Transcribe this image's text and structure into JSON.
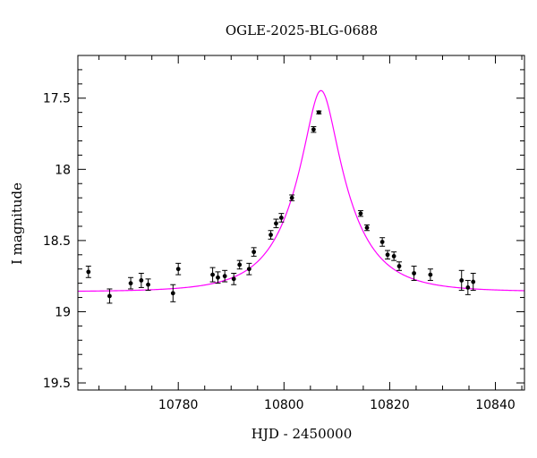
{
  "chart_data": {
    "type": "scatter",
    "title": "OGLE-2025-BLG-0688",
    "xlabel": "HJD - 2450000",
    "ylabel": "I magnitude",
    "xlim": [
      10761,
      10845.5
    ],
    "ylim": [
      19.55,
      17.2
    ],
    "y_inverted": true,
    "xticks": [
      10780,
      10800,
      10820,
      10840
    ],
    "yticks": [
      17.5,
      18,
      18.5,
      19,
      19.5
    ],
    "xtick_labels": [
      "10780",
      "10800",
      "10820",
      "10840"
    ],
    "ytick_labels": [
      "17.5",
      "18",
      "18.5",
      "19",
      "19.5"
    ],
    "model_color": "#ff00ff",
    "marker_color": "#000000",
    "model": {
      "t0": 10807.0,
      "u0": 0.28,
      "tE": 10.0,
      "baseline": 18.86
    },
    "points": [
      {
        "x": 10763.0,
        "y": 18.72,
        "err": 0.04
      },
      {
        "x": 10767.0,
        "y": 18.89,
        "err": 0.05
      },
      {
        "x": 10771.0,
        "y": 18.8,
        "err": 0.04
      },
      {
        "x": 10773.0,
        "y": 18.78,
        "err": 0.05
      },
      {
        "x": 10774.3,
        "y": 18.81,
        "err": 0.04
      },
      {
        "x": 10779.0,
        "y": 18.87,
        "err": 0.06
      },
      {
        "x": 10780.0,
        "y": 18.7,
        "err": 0.04
      },
      {
        "x": 10786.5,
        "y": 18.74,
        "err": 0.05
      },
      {
        "x": 10787.5,
        "y": 18.76,
        "err": 0.04
      },
      {
        "x": 10788.8,
        "y": 18.75,
        "err": 0.04
      },
      {
        "x": 10790.5,
        "y": 18.77,
        "err": 0.04
      },
      {
        "x": 10791.6,
        "y": 18.67,
        "err": 0.03
      },
      {
        "x": 10793.4,
        "y": 18.7,
        "err": 0.04
      },
      {
        "x": 10794.3,
        "y": 18.58,
        "err": 0.03
      },
      {
        "x": 10797.5,
        "y": 18.46,
        "err": 0.03
      },
      {
        "x": 10798.5,
        "y": 18.38,
        "err": 0.03
      },
      {
        "x": 10799.5,
        "y": 18.34,
        "err": 0.03
      },
      {
        "x": 10801.5,
        "y": 18.2,
        "err": 0.02
      },
      {
        "x": 10805.6,
        "y": 17.72,
        "err": 0.02
      },
      {
        "x": 10806.6,
        "y": 17.6,
        "err": 0.01
      },
      {
        "x": 10814.5,
        "y": 18.31,
        "err": 0.02
      },
      {
        "x": 10815.7,
        "y": 18.41,
        "err": 0.02
      },
      {
        "x": 10818.6,
        "y": 18.51,
        "err": 0.03
      },
      {
        "x": 10819.6,
        "y": 18.6,
        "err": 0.03
      },
      {
        "x": 10820.8,
        "y": 18.61,
        "err": 0.03
      },
      {
        "x": 10821.8,
        "y": 18.68,
        "err": 0.03
      },
      {
        "x": 10824.6,
        "y": 18.73,
        "err": 0.05
      },
      {
        "x": 10827.7,
        "y": 18.74,
        "err": 0.04
      },
      {
        "x": 10833.6,
        "y": 18.78,
        "err": 0.07
      },
      {
        "x": 10834.8,
        "y": 18.83,
        "err": 0.05
      },
      {
        "x": 10835.8,
        "y": 18.79,
        "err": 0.06
      }
    ]
  }
}
